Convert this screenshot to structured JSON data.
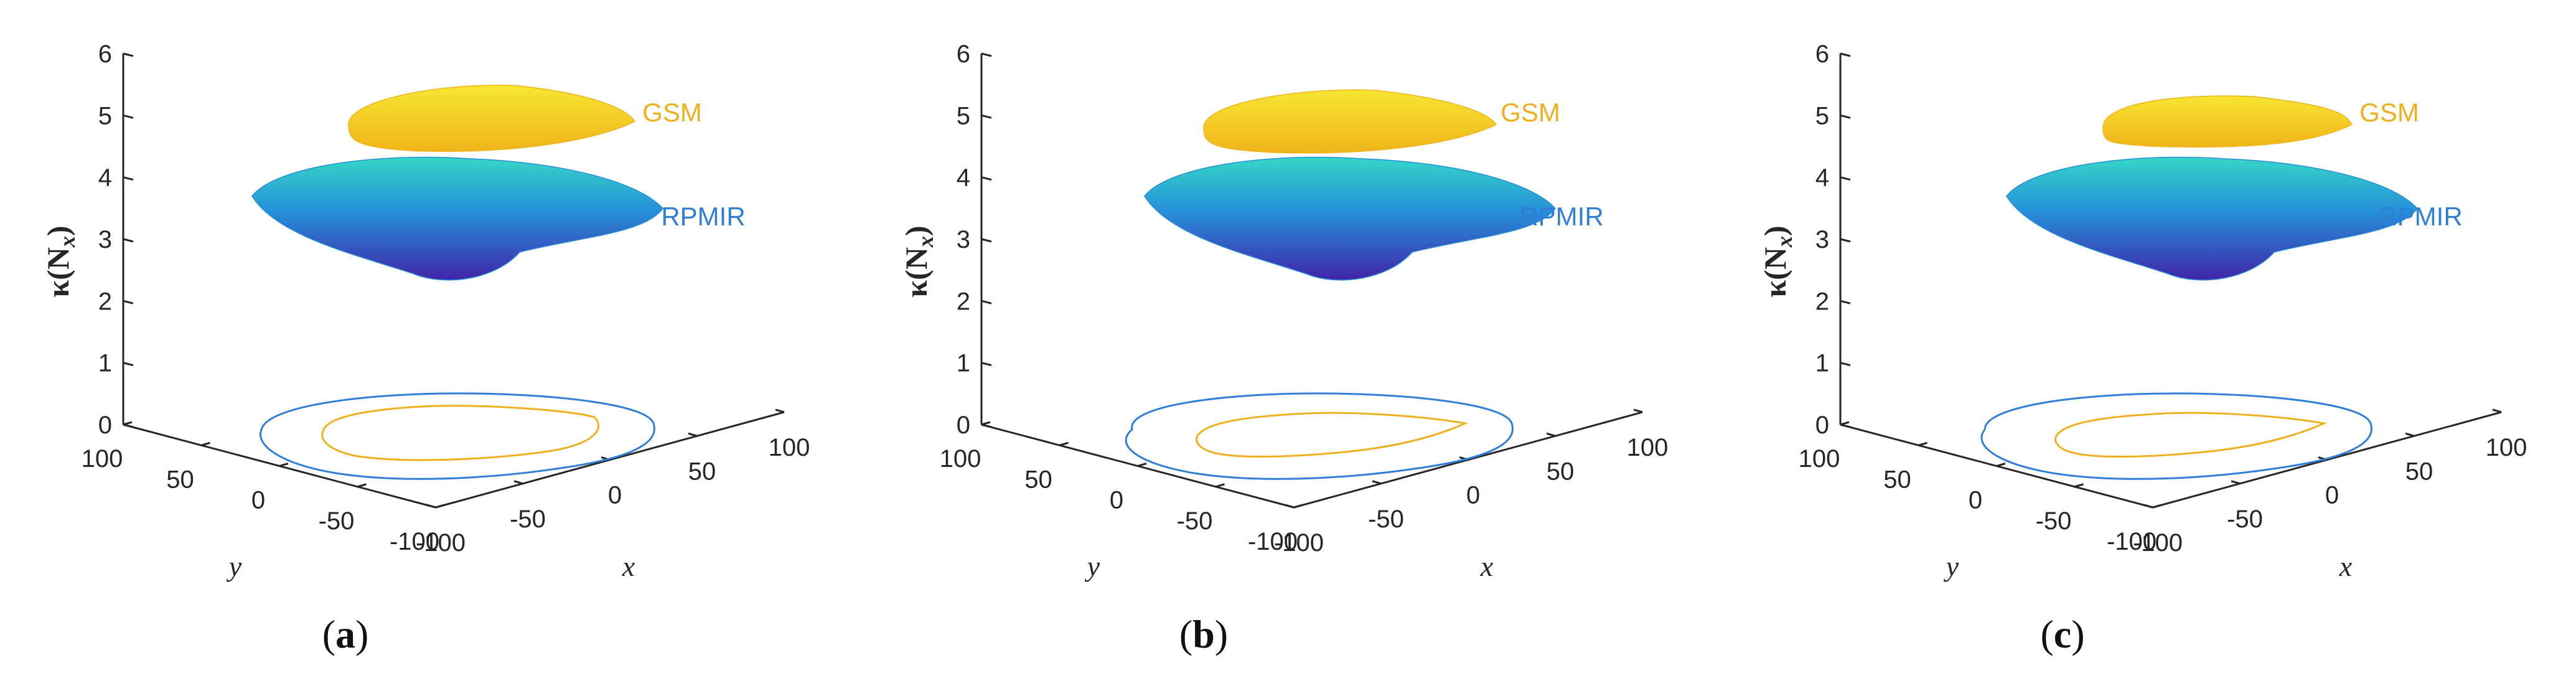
{
  "figure": {
    "colors": {
      "gsm": "#EDB120",
      "rpmir": "#2F7FD6",
      "axis": "#262626",
      "surface_low": "#3B1EA6",
      "surface_mid": "#1F8BD8",
      "surface_high": "#2FD6C6",
      "gsm_surface_top": "#F7E633",
      "gsm_surface_bottom": "#F0B419"
    }
  },
  "chart_data": [
    {
      "type": "surface",
      "panel_label": "(a)",
      "panel_letter": "a",
      "zlabel": "κ(Nx)",
      "zlabel_main": "κ(N",
      "zlabel_sub": "x",
      "zlabel_close": ")",
      "xlabel": "x",
      "ylabel": "y",
      "zlim": [
        0,
        6
      ],
      "zticks": [
        "0",
        "1",
        "2",
        "3",
        "4",
        "5",
        "6"
      ],
      "xticks": [
        "-100",
        "-50",
        "0",
        "50",
        "100"
      ],
      "yticks": [
        "100",
        "50",
        "0",
        "-50",
        "-100"
      ],
      "series": [
        {
          "name": "GSM",
          "z_min": 4.7,
          "z_max": 5.5,
          "z_mean": 5.0
        },
        {
          "name": "RPMIR",
          "z_min": 2.5,
          "z_max": 4.4,
          "z_mean": 3.6
        }
      ]
    },
    {
      "type": "surface",
      "panel_label": "(b)",
      "panel_letter": "b",
      "zlabel": "κ(Nx)",
      "zlabel_main": "κ(N",
      "zlabel_sub": "x",
      "zlabel_close": ")",
      "xlabel": "x",
      "ylabel": "y",
      "zlim": [
        0,
        6
      ],
      "zticks": [
        "0",
        "1",
        "2",
        "3",
        "4",
        "5",
        "6"
      ],
      "xticks": [
        "-100",
        "-50",
        "0",
        "50",
        "100"
      ],
      "yticks": [
        "100",
        "50",
        "0",
        "-50",
        "-100"
      ],
      "series": [
        {
          "name": "GSM",
          "z_min": 4.6,
          "z_max": 5.5,
          "z_mean": 5.0
        },
        {
          "name": "RPMIR",
          "z_min": 2.4,
          "z_max": 4.3,
          "z_mean": 3.5
        }
      ]
    },
    {
      "type": "surface",
      "panel_label": "(c)",
      "panel_letter": "c",
      "zlabel": "κ(Nx)",
      "zlabel_main": "κ(N",
      "zlabel_sub": "x",
      "zlabel_close": ")",
      "xlabel": "x",
      "ylabel": "y",
      "zlim": [
        0,
        6
      ],
      "zticks": [
        "0",
        "1",
        "2",
        "3",
        "4",
        "5",
        "6"
      ],
      "xticks": [
        "-100",
        "-50",
        "0",
        "50",
        "100"
      ],
      "yticks": [
        "100",
        "50",
        "0",
        "-50",
        "-100"
      ],
      "series": [
        {
          "name": "GSM",
          "z_min": 4.8,
          "z_max": 5.5,
          "z_mean": 5.1
        },
        {
          "name": "RPMIR",
          "z_min": 2.4,
          "z_max": 4.3,
          "z_mean": 3.5
        }
      ]
    }
  ]
}
